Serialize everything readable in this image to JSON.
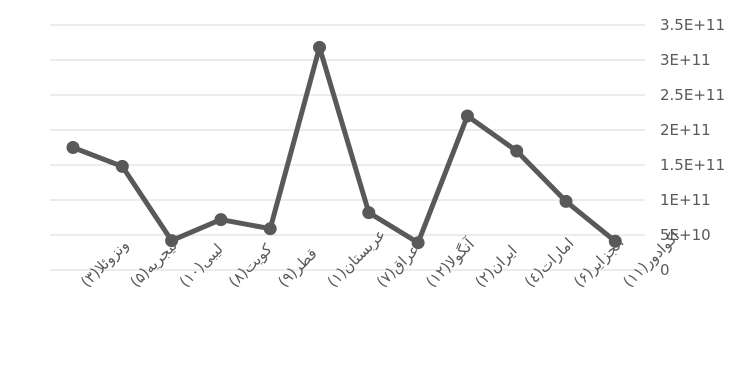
{
  "chart_data": {
    "type": "line",
    "title": "",
    "xlabel": "",
    "ylabel": "",
    "ylim": [
      0,
      350000000000
    ],
    "yticks": [
      {
        "value": 0,
        "label": "0"
      },
      {
        "value": 50000000000,
        "label": "5E+10"
      },
      {
        "value": 100000000000,
        "label": "1E+11"
      },
      {
        "value": 150000000000,
        "label": "1.5E+11"
      },
      {
        "value": 200000000000,
        "label": "2E+11"
      },
      {
        "value": 250000000000,
        "label": "2.5E+11"
      },
      {
        "value": 300000000000,
        "label": "3E+11"
      },
      {
        "value": 350000000000,
        "label": "3.5E+11"
      }
    ],
    "y_axis_position": "right",
    "grid": true,
    "legend": "none",
    "categories": [
      "ونزوئلا(۳)",
      "نیجریه(۵)",
      "لیبی(۱۰)",
      "کویت(۸)",
      "قطر(۹)",
      "عربستان(۱)",
      "عراق(۷)",
      "آنگولا(۱۲)",
      "ایران(۲)",
      "امارات(٤)",
      "الجزایر(۶)",
      "اکوادور(۱۱)"
    ],
    "series": [
      {
        "values": [
          175000000000,
          148000000000,
          42000000000,
          72000000000,
          59000000000,
          318000000000,
          82000000000,
          39000000000,
          220000000000,
          170000000000,
          98000000000,
          41000000000
        ],
        "color": "#595959"
      }
    ]
  }
}
